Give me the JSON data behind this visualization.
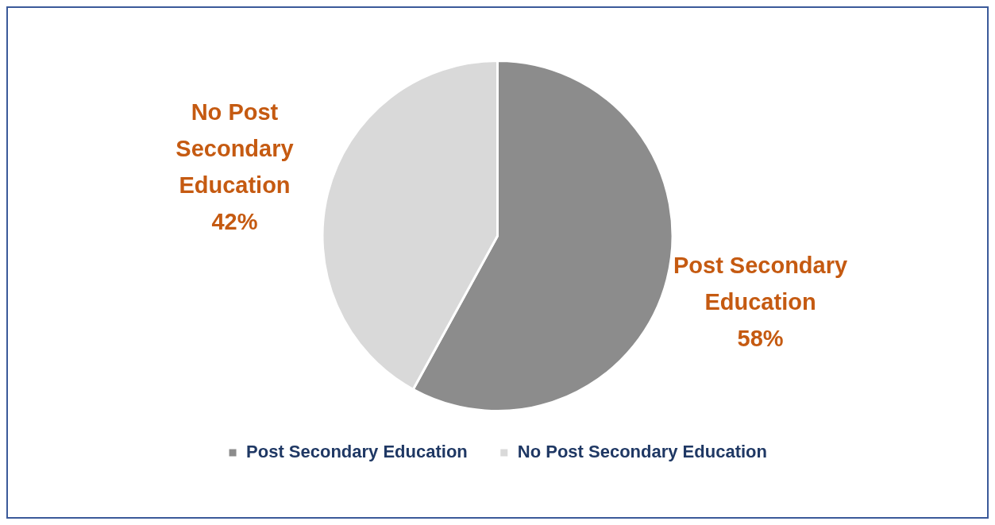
{
  "chart_data": {
    "type": "pie",
    "categories": [
      "Post Secondary Education",
      "No Post Secondary Education"
    ],
    "values": [
      58,
      42
    ],
    "colors": [
      "#8c8c8c",
      "#d9d9d9"
    ],
    "value_labels": [
      "58%",
      "42%"
    ],
    "legend": "bottom"
  }
}
